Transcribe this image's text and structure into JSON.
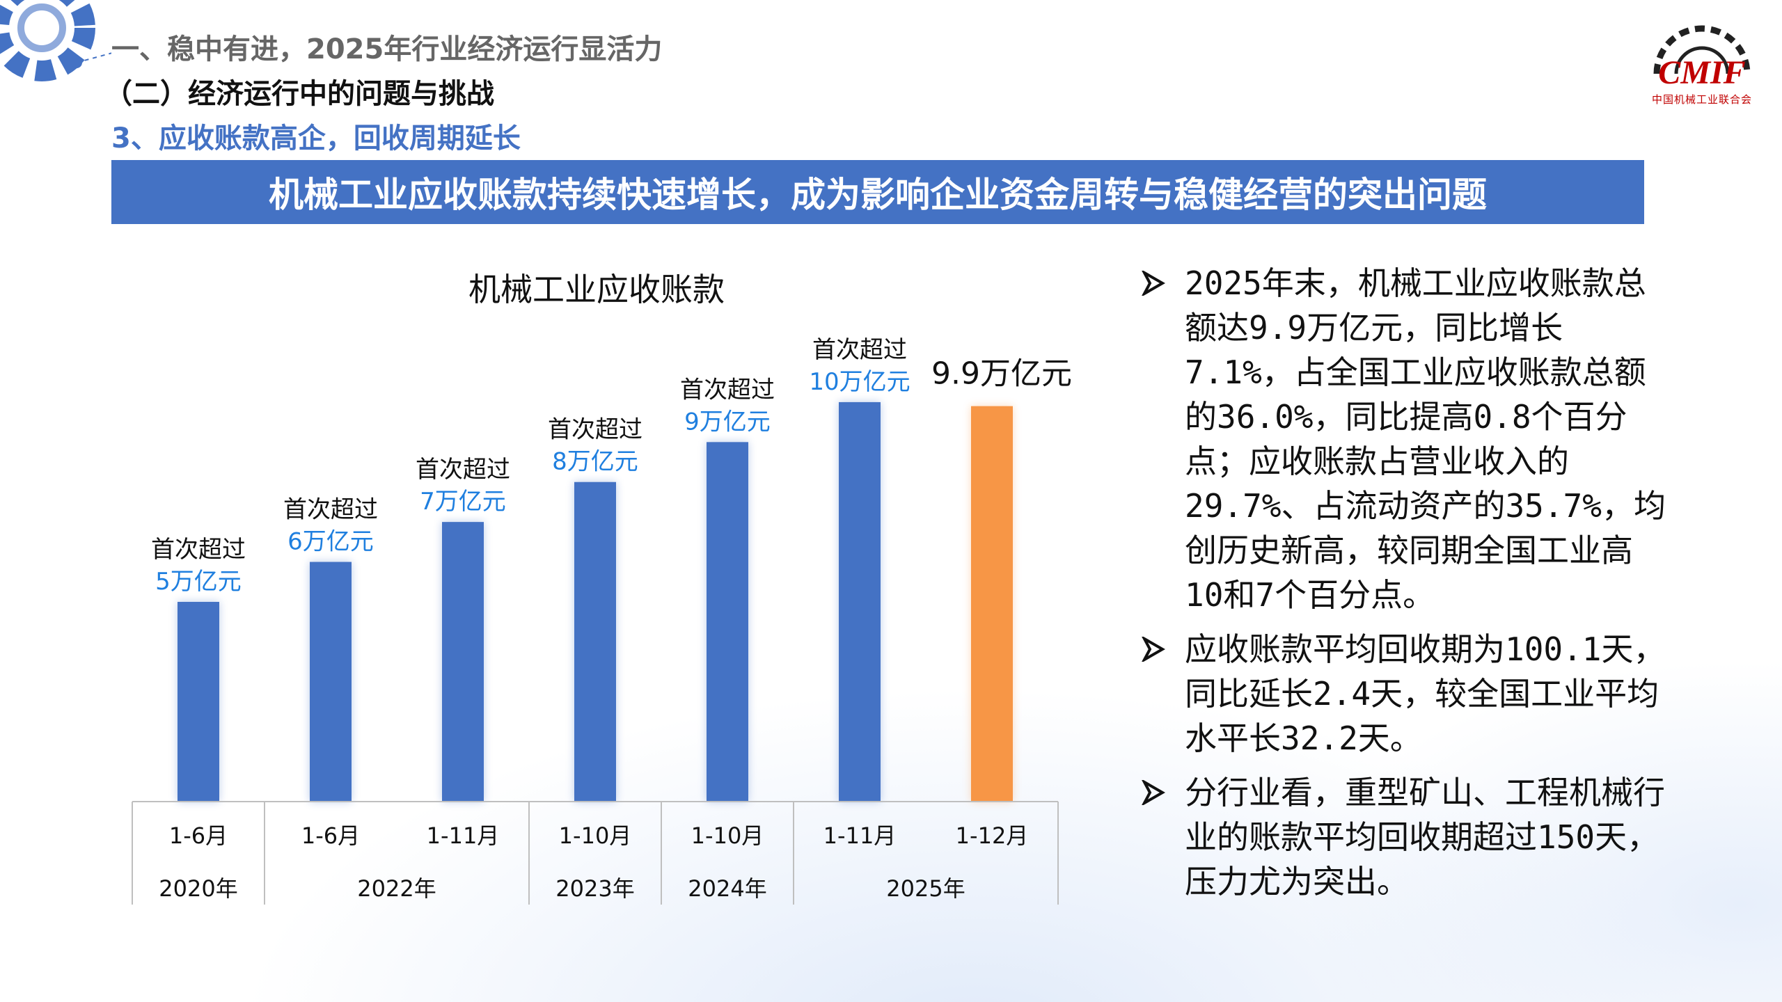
{
  "header": {
    "line1": "一、稳中有进，2025年行业经济运行显活力",
    "line2": "（二）经济运行中的问题与挑战",
    "line3": "3、应收账款高企，回收周期延长"
  },
  "logo": {
    "text": "CMIF",
    "subtitle": "中国机械工业联合会",
    "icon": "gear-icon"
  },
  "banner": {
    "text": "机械工业应收账款持续快速增长，成为影响企业资金周转与稳健经营的突出问题"
  },
  "colors": {
    "accent": "#4472C4",
    "highlight": "#F79646",
    "logo_red": "#C00000"
  },
  "chart_data": {
    "type": "bar",
    "title": "机械工业应收账款",
    "categories": [
      "1-6月",
      "1-6月",
      "1-11月",
      "1-10月",
      "1-10月",
      "1-11月",
      "1-12月"
    ],
    "year_groups": [
      {
        "label": "2020年",
        "span": 1
      },
      {
        "label": "2022年",
        "span": 2
      },
      {
        "label": "2023年",
        "span": 1
      },
      {
        "label": "2024年",
        "span": 1
      },
      {
        "label": "2025年",
        "span": 2
      }
    ],
    "values": [
      5.0,
      6.0,
      7.0,
      8.0,
      9.0,
      10.0,
      9.9
    ],
    "unit": "万亿元",
    "ylim": [
      0,
      10.8
    ],
    "bar_colors": [
      "#4472C4",
      "#4472C4",
      "#4472C4",
      "#4472C4",
      "#4472C4",
      "#4472C4",
      "#F79646"
    ],
    "annotations": [
      {
        "prefix": "首次超过",
        "value_text": "5万亿元"
      },
      {
        "prefix": "首次超过",
        "value_text": "6万亿元"
      },
      {
        "prefix": "首次超过",
        "value_text": "7万亿元"
      },
      {
        "prefix": "首次超过",
        "value_text": "8万亿元"
      },
      {
        "prefix": "首次超过",
        "value_text": "9万亿元"
      },
      {
        "prefix": "首次超过",
        "value_text": "10万亿元"
      },
      {
        "prefix": "",
        "value_text": "9.9万亿元"
      }
    ],
    "grid": false,
    "legend": "none"
  },
  "bullets": [
    {
      "text": "2025年末，机械工业应收账款总额达9.9万亿元，同比增长7.1%，占全国工业应收账款总额的36.0%，同比提高0.8个百分点；应收账款占营业收入的29.7%、占流动资产的35.7%，均创历史新高，较同期全国工业高10和7个百分点。"
    },
    {
      "text": "应收账款平均回收期为100.1天，同比延长2.4天，较全国工业平均水平长32.2天。"
    },
    {
      "text": "分行业看，重型矿山、工程机械行业的账款平均回收期超过150天，压力尤为突出。"
    }
  ]
}
